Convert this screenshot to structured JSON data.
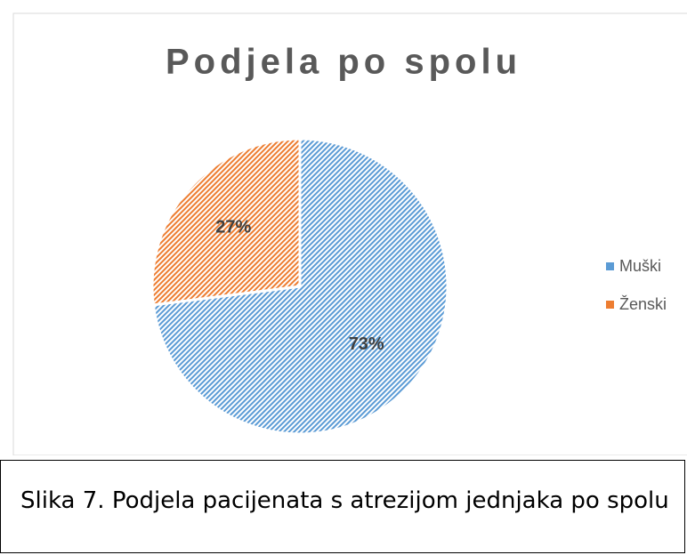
{
  "chart_data": {
    "type": "pie",
    "title": "Podjela po spolu",
    "categories": [
      "Muški",
      "Ženski"
    ],
    "values": [
      73,
      27
    ],
    "value_labels": [
      "73%",
      "27%"
    ],
    "colors": [
      "#5b9bd5",
      "#ed7d31"
    ],
    "legend": "right"
  },
  "caption": "Slika 7. Podjela pacijenata s atrezijom jednjaka po spolu"
}
